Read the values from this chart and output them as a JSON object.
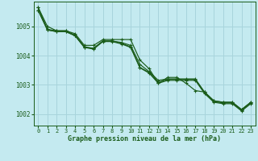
{
  "title": "Graphe pression niveau de la mer (hPa)",
  "bg_color": "#c4eaf0",
  "grid_color": "#a8d4dc",
  "line_color": "#1a5c1a",
  "text_color": "#1a5c1a",
  "xlim": [
    -0.5,
    23.5
  ],
  "ylim": [
    1001.6,
    1005.85
  ],
  "yticks": [
    1002,
    1003,
    1004,
    1005
  ],
  "xticks": [
    0,
    1,
    2,
    3,
    4,
    5,
    6,
    7,
    8,
    9,
    10,
    11,
    12,
    13,
    14,
    15,
    16,
    17,
    18,
    19,
    20,
    21,
    22,
    23
  ],
  "lines": [
    [
      1005.65,
      1005.0,
      1004.85,
      1004.85,
      1004.75,
      1004.35,
      1004.35,
      1004.55,
      1004.55,
      1004.55,
      1004.55,
      1003.85,
      1003.55,
      1003.05,
      1003.25,
      1003.25,
      1003.05,
      1002.8,
      1002.75,
      1002.45,
      1002.4,
      1002.4,
      1002.15,
      1002.4
    ],
    [
      1005.65,
      1004.9,
      1004.85,
      1004.85,
      1004.7,
      1004.3,
      1004.25,
      1004.5,
      1004.5,
      1004.45,
      1004.35,
      1003.7,
      1003.45,
      1003.15,
      1003.2,
      1003.2,
      1003.2,
      1003.2,
      1002.75,
      1002.45,
      1002.4,
      1002.4,
      1002.15,
      1002.4
    ],
    [
      1005.55,
      1004.88,
      1004.82,
      1004.82,
      1004.68,
      1004.28,
      1004.25,
      1004.5,
      1004.5,
      1004.42,
      1004.3,
      1003.6,
      1003.42,
      1003.08,
      1003.18,
      1003.18,
      1003.18,
      1003.18,
      1002.72,
      1002.42,
      1002.38,
      1002.38,
      1002.12,
      1002.38
    ],
    [
      1005.55,
      1004.88,
      1004.82,
      1004.82,
      1004.68,
      1004.28,
      1004.22,
      1004.48,
      1004.48,
      1004.4,
      1004.28,
      1003.58,
      1003.4,
      1003.05,
      1003.15,
      1003.15,
      1003.15,
      1003.15,
      1002.7,
      1002.4,
      1002.35,
      1002.35,
      1002.1,
      1002.35
    ]
  ]
}
